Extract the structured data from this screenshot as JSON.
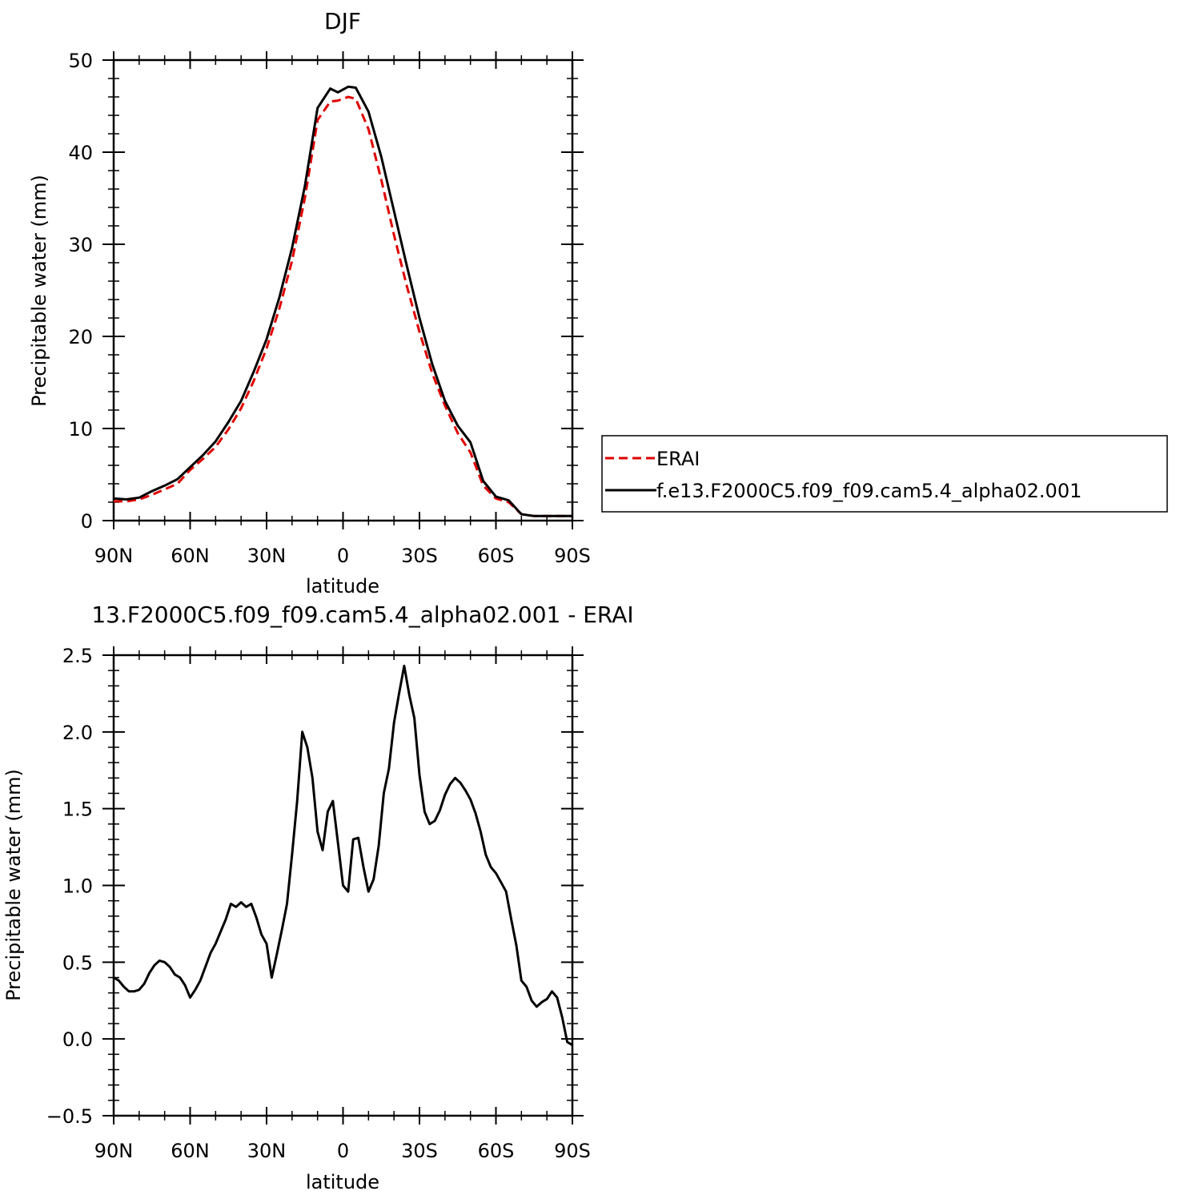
{
  "chart_data": [
    {
      "type": "line",
      "title": "DJF",
      "xlabel": "latitude",
      "ylabel": "Precipitable water (mm)",
      "xlim": [
        -90,
        90
      ],
      "ylim": [
        0,
        50
      ],
      "x_tick_values": [
        -90,
        -60,
        -30,
        0,
        30,
        60,
        90
      ],
      "x_tick_labels": [
        "90N",
        "60N",
        "30N",
        "0",
        "30S",
        "60S",
        "90S"
      ],
      "y_ticks": [
        0,
        10,
        20,
        30,
        40,
        50
      ],
      "grid": false,
      "legend": "right",
      "x": [
        -90,
        -85,
        -80,
        -75,
        -70,
        -65,
        -60,
        -55,
        -50,
        -45,
        -40,
        -35,
        -30,
        -25,
        -20,
        -15,
        -10,
        -5,
        -2,
        0,
        2,
        5,
        10,
        15,
        20,
        25,
        30,
        35,
        40,
        45,
        50,
        55,
        60,
        65,
        70,
        75,
        80,
        85,
        90
      ],
      "series": [
        {
          "name": "ERAI",
          "color": "#e00000",
          "dash": true,
          "values": [
            2.1,
            2.1,
            2.3,
            2.8,
            3.4,
            4.0,
            5.5,
            6.7,
            8.0,
            9.9,
            12.2,
            15.2,
            18.7,
            23.0,
            28.2,
            35.0,
            43.5,
            45.5,
            45.6,
            45.8,
            46.0,
            45.8,
            42.5,
            37.0,
            31.0,
            25.5,
            20.5,
            16.0,
            12.5,
            9.5,
            7.4,
            3.8,
            2.4,
            2.0,
            0.7,
            0.5,
            0.5,
            0.5,
            0.5
          ]
        },
        {
          "name": "f.e13.F2000C5.f09_f09.cam5.4_alpha02.001",
          "color": "#000000",
          "dash": false,
          "values": [
            2.4,
            2.3,
            2.5,
            3.2,
            3.8,
            4.5,
            5.8,
            7.1,
            8.6,
            10.7,
            13.0,
            16.2,
            19.7,
            24.2,
            29.6,
            36.3,
            44.8,
            46.9,
            46.5,
            46.8,
            47.1,
            47.0,
            44.4,
            39.5,
            33.6,
            27.7,
            22.0,
            17.0,
            13.0,
            10.3,
            8.5,
            4.3,
            2.6,
            2.2,
            0.7,
            0.5,
            0.5,
            0.5,
            0.5
          ]
        }
      ]
    },
    {
      "type": "line",
      "title": "13.F2000C5.f09_f09.cam5.4_alpha02.001 - ERAI",
      "xlabel": "latitude",
      "ylabel": "Precipitable water (mm)",
      "xlim": [
        -90,
        90
      ],
      "ylim": [
        -0.5,
        2.5
      ],
      "x_tick_values": [
        -90,
        -60,
        -30,
        0,
        30,
        60,
        90
      ],
      "x_tick_labels": [
        "90N",
        "60N",
        "30N",
        "0",
        "30S",
        "60S",
        "90S"
      ],
      "y_ticks": [
        -0.5,
        0.0,
        0.5,
        1.0,
        1.5,
        2.0,
        2.5
      ],
      "y_tick_labels": [
        "−0.5",
        "0.0",
        "0.5",
        "1.0",
        "1.5",
        "2.0",
        "2.5"
      ],
      "grid": false,
      "series": [
        {
          "name": "",
          "color": "#000000",
          "dash": false,
          "x": [
            -90,
            -88,
            -86,
            -84,
            -82,
            -80,
            -78,
            -76,
            -74,
            -72,
            -70,
            -68,
            -66,
            -64,
            -62,
            -60,
            -58,
            -56,
            -54,
            -52,
            -50,
            -48,
            -46,
            -44,
            -42,
            -40,
            -38,
            -36,
            -34,
            -32,
            -30,
            -28,
            -26,
            -24,
            -22,
            -20,
            -18,
            -16,
            -14,
            -12,
            -10,
            -8,
            -6,
            -4,
            -2,
            0,
            2,
            4,
            6,
            8,
            10,
            12,
            14,
            16,
            18,
            20,
            22,
            24,
            26,
            28,
            30,
            32,
            34,
            36,
            38,
            40,
            42,
            44,
            46,
            48,
            50,
            52,
            54,
            56,
            58,
            60,
            62,
            64,
            66,
            68,
            70,
            72,
            74,
            76,
            78,
            80,
            82,
            84,
            86,
            88,
            90
          ],
          "values": [
            0.4,
            0.38,
            0.34,
            0.31,
            0.31,
            0.32,
            0.36,
            0.43,
            0.48,
            0.51,
            0.5,
            0.47,
            0.42,
            0.4,
            0.35,
            0.27,
            0.32,
            0.38,
            0.47,
            0.56,
            0.62,
            0.7,
            0.78,
            0.88,
            0.86,
            0.89,
            0.86,
            0.88,
            0.79,
            0.68,
            0.62,
            0.4,
            0.55,
            0.71,
            0.88,
            1.2,
            1.55,
            2.0,
            1.9,
            1.7,
            1.35,
            1.23,
            1.48,
            1.55,
            1.28,
            1.0,
            0.96,
            1.3,
            1.31,
            1.12,
            0.96,
            1.04,
            1.26,
            1.6,
            1.76,
            2.06,
            2.25,
            2.43,
            2.24,
            2.09,
            1.72,
            1.48,
            1.4,
            1.42,
            1.49,
            1.59,
            1.66,
            1.7,
            1.67,
            1.62,
            1.56,
            1.47,
            1.35,
            1.2,
            1.12,
            1.08,
            1.02,
            0.96,
            0.78,
            0.61,
            0.38,
            0.34,
            0.25,
            0.21,
            0.24,
            0.26,
            0.31,
            0.27,
            0.14,
            -0.02,
            -0.04
          ]
        }
      ]
    }
  ]
}
